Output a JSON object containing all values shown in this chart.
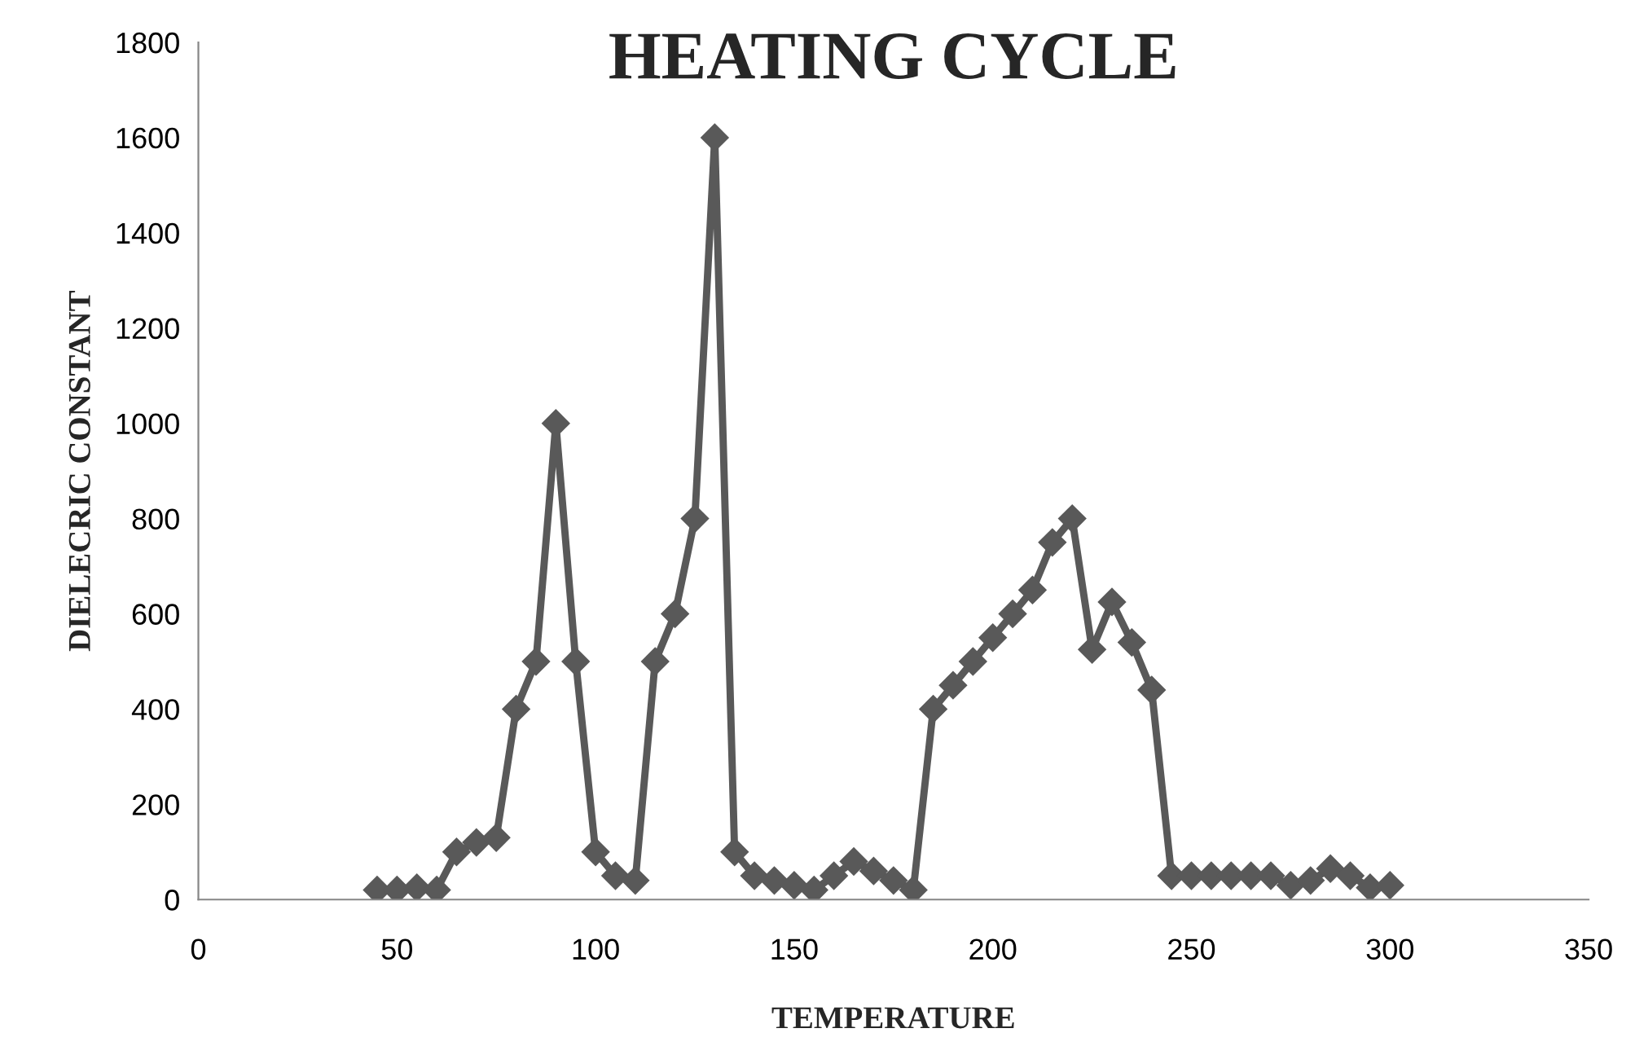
{
  "chart_data": {
    "type": "line",
    "title": "HEATING CYCLE",
    "xlabel": "TEMPERATURE",
    "ylabel": "DIELECRIC CONSTANT",
    "x": [
      45,
      50,
      55,
      60,
      65,
      70,
      75,
      80,
      85,
      90,
      95,
      100,
      105,
      110,
      115,
      120,
      125,
      130,
      135,
      140,
      145,
      150,
      155,
      160,
      165,
      170,
      175,
      180,
      185,
      190,
      195,
      200,
      205,
      210,
      215,
      220,
      225,
      230,
      235,
      240,
      245,
      250,
      255,
      260,
      265,
      270,
      275,
      280,
      285,
      290,
      295,
      300
    ],
    "series": [
      {
        "color": "#595959",
        "values": [
          20,
          20,
          25,
          20,
          100,
          120,
          130,
          400,
          500,
          1000,
          500,
          100,
          50,
          40,
          500,
          600,
          800,
          1600,
          100,
          50,
          40,
          30,
          20,
          50,
          80,
          60,
          40,
          20,
          400,
          450,
          500,
          550,
          600,
          650,
          750,
          800,
          525,
          625,
          540,
          440,
          50,
          50,
          50,
          50,
          50,
          50,
          30,
          40,
          65,
          50,
          25,
          30
        ]
      }
    ],
    "xlim": [
      0,
      350
    ],
    "xticks": [
      0,
      50,
      100,
      150,
      200,
      250,
      300,
      350
    ],
    "ylim": [
      0,
      1800
    ],
    "yticks": [
      0,
      200,
      400,
      600,
      800,
      1000,
      1200,
      1400,
      1600,
      1800
    ],
    "marker": "diamond",
    "line_style": "solid",
    "grid": false,
    "legend": false
  }
}
